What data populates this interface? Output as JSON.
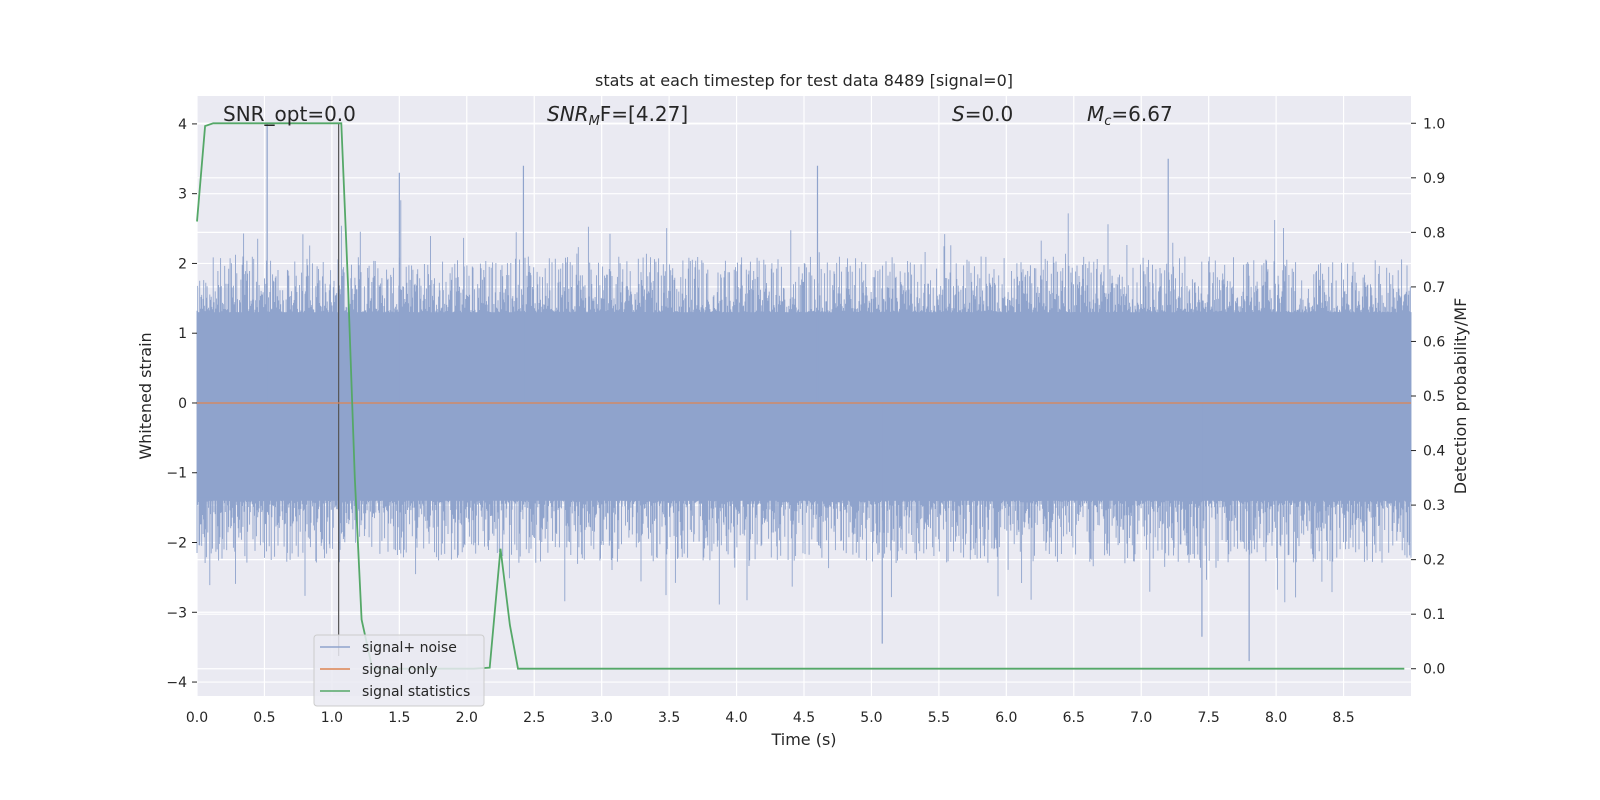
{
  "chart_data": {
    "type": "line",
    "title": "stats at each timestep for test data 8489 [signal=0]",
    "xlabel": "Time (s)",
    "ylabel": "Whitened strain",
    "ylabel_right": "Detection probability/MF",
    "xlim": [
      0.0,
      9.0
    ],
    "ylim": [
      -4.2,
      4.4
    ],
    "ylim_right": [
      -0.05,
      1.05
    ],
    "x_ticks": [
      "0.0",
      "0.5",
      "1.0",
      "1.5",
      "2.0",
      "2.5",
      "3.0",
      "3.5",
      "4.0",
      "4.5",
      "5.0",
      "5.5",
      "6.0",
      "6.5",
      "7.0",
      "7.5",
      "8.0",
      "8.5"
    ],
    "y_ticks": [
      "4",
      "3",
      "2",
      "1",
      "0",
      "−1",
      "−2",
      "−3",
      "−4"
    ],
    "y_ticks_right": [
      "1.0",
      "0.9",
      "0.8",
      "0.7",
      "0.6",
      "0.5",
      "0.4",
      "0.3",
      "0.2",
      "0.1",
      "0.0"
    ],
    "grid": true,
    "legend_position": "lower-left",
    "annotations": {
      "snr_opt": "SNR_opt=0.0",
      "snr_mf_main": "SNR",
      "snr_mf_sub": "M",
      "snr_mf_rest": "F=[4.27]",
      "s_main": "S",
      "s_rest": "=0.0",
      "mc_main": "M",
      "mc_sub": "c",
      "mc_rest": "=6.67"
    },
    "series": [
      {
        "name": "signal+ noise",
        "axis": "left",
        "color": "#8fa3cc",
        "x_range": [
          0.0,
          9.0
        ],
        "upper_envelope_typical": [
          1.3,
          2.1
        ],
        "lower_envelope_typical": [
          -2.3,
          -1.4
        ],
        "extremes": [
          {
            "x": 0.52,
            "y": 4.0
          },
          {
            "x": 1.5,
            "y": 3.3
          },
          {
            "x": 2.42,
            "y": 3.4
          },
          {
            "x": 4.6,
            "y": 3.4
          },
          {
            "x": 7.2,
            "y": 3.5
          },
          {
            "x": 5.08,
            "y": -3.45
          },
          {
            "x": 7.45,
            "y": -3.35
          },
          {
            "x": 7.8,
            "y": -3.7
          }
        ]
      },
      {
        "name": "signal only",
        "axis": "left",
        "color": "#dd8452",
        "x": [
          0.0,
          9.0
        ],
        "y": [
          0.0,
          0.0
        ]
      },
      {
        "name": "signal statistics",
        "axis": "right",
        "color": "#55a868",
        "x": [
          0.0,
          0.06,
          0.12,
          1.07,
          1.12,
          1.17,
          1.22,
          1.3,
          2.05,
          2.17,
          2.25,
          2.32,
          2.38,
          8.95
        ],
        "y": [
          0.82,
          0.995,
          1.0,
          1.0,
          0.7,
          0.35,
          0.09,
          0.0,
          0.0,
          0.002,
          0.22,
          0.08,
          0.0,
          0.0
        ]
      }
    ],
    "marker_line": {
      "x": 1.05,
      "color": "#555555"
    }
  }
}
